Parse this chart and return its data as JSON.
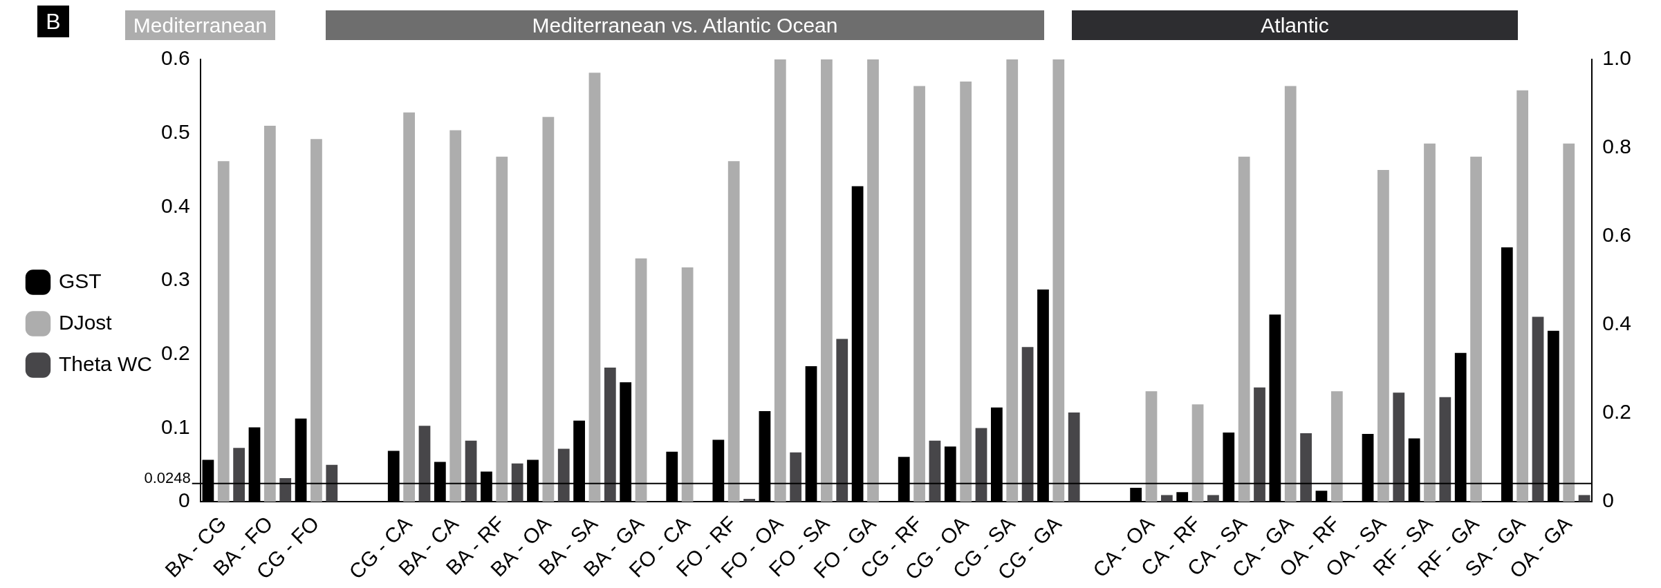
{
  "chart_data": {
    "type": "bar",
    "categories": [
      "BA - CG",
      "BA - FO",
      "CG - FO",
      null,
      "CG - CA",
      "BA - CA",
      "BA - RF",
      "BA - OA",
      "BA - SA",
      "BA - GA",
      "FO - CA",
      "FO - RF",
      "FO - OA",
      "FO - SA",
      "FO - GA",
      "CG - RF",
      "CG - OA",
      "CG - SA",
      "CG - GA",
      null,
      "CA - OA",
      "CA - RF",
      "CA - SA",
      "CA - GA",
      "OA - RF",
      "OA - SA",
      "RF - SA",
      "RF - GA",
      "SA - GA",
      "OA - GA"
    ],
    "series": [
      {
        "name": "GST",
        "color": "#000000",
        "values": [
          0.057,
          0.101,
          0.113,
          null,
          0.069,
          0.054,
          0.041,
          0.057,
          0.11,
          0.162,
          0.068,
          0.084,
          0.123,
          0.184,
          0.428,
          0.061,
          0.075,
          0.128,
          0.288,
          null,
          0.019,
          0.013,
          0.094,
          0.254,
          0.015,
          0.092,
          0.086,
          0.202,
          0.345,
          0.232
        ]
      },
      {
        "name": "DJost",
        "color": "#adadad",
        "axis": "y2",
        "values": [
          0.77,
          0.85,
          0.82,
          null,
          0.88,
          0.84,
          0.78,
          0.87,
          0.97,
          0.55,
          0.53,
          0.77,
          1.0,
          1.0,
          1.0,
          0.94,
          0.95,
          1.0,
          1.0,
          null,
          0.25,
          0.22,
          0.78,
          0.94,
          0.25,
          0.75,
          0.81,
          0.78,
          0.93,
          0.81
        ]
      },
      {
        "name": "Theta WC",
        "color": "#474649",
        "values": [
          0.073,
          0.032,
          0.05,
          null,
          0.103,
          0.083,
          0.052,
          0.072,
          0.182,
          0,
          0,
          0.004,
          0.067,
          0.221,
          0,
          0.083,
          0.1,
          0.21,
          0.121,
          null,
          0.009,
          0.009,
          0.155,
          0.093,
          0,
          0.148,
          0.142,
          0,
          0.251,
          0.009
        ]
      }
    ],
    "ylim": [
      0,
      0.6
    ],
    "yticks": [
      0,
      0.1,
      0.2,
      0.3,
      0.4,
      0.5,
      0.6
    ],
    "y2lim": [
      0,
      1
    ],
    "y2ticks": [
      0,
      0.2,
      0.4,
      0.6,
      0.8,
      {
        "value": 1,
        "label": "1.0"
      }
    ],
    "ref_lines": [
      {
        "axis": "y",
        "value": 0.0248,
        "label": "0.0248",
        "color": "#000000"
      }
    ],
    "annotations": [
      "B",
      "Mediterranean",
      "Mediterranean vs. Atlantic Ocean",
      "Atlantic"
    ],
    "legend": "left",
    "grid": false
  }
}
